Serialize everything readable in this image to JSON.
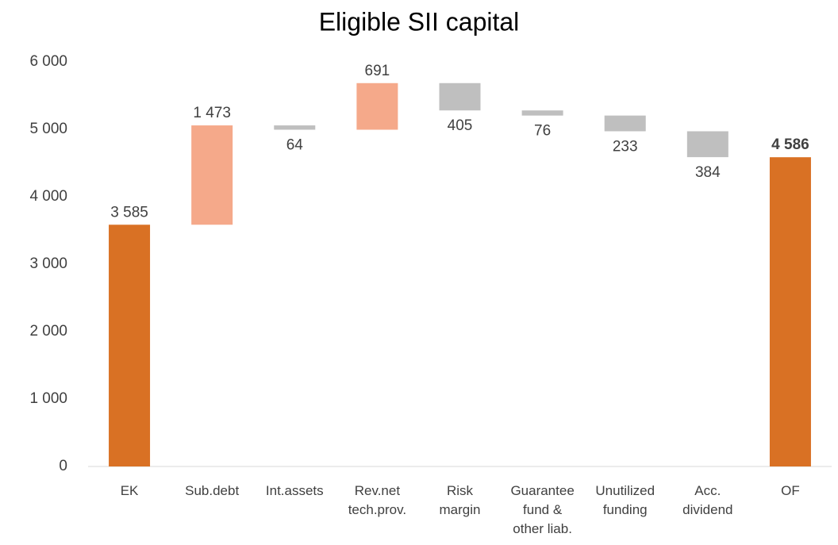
{
  "chart_data": {
    "type": "waterfall",
    "title": "Eligible SII capital",
    "categories": [
      [
        "EK"
      ],
      [
        "Sub.debt"
      ],
      [
        "Int.assets"
      ],
      [
        "Rev.net",
        "tech.prov."
      ],
      [
        "Risk",
        "margin"
      ],
      [
        "Guarantee",
        "fund &",
        "other liab."
      ],
      [
        "Unutilized",
        "funding"
      ],
      [
        "Acc.",
        "dividend"
      ],
      [
        "OF"
      ]
    ],
    "values": [
      3585,
      1473,
      64,
      691,
      405,
      76,
      233,
      384,
      4586
    ],
    "value_labels": [
      "3 585",
      "1 473",
      "64",
      "691",
      "405",
      "76",
      "233",
      "384",
      "4 586"
    ],
    "measures": [
      "total",
      "increase",
      "decrease",
      "increase",
      "decrease",
      "decrease",
      "decrease",
      "decrease",
      "total"
    ],
    "label_bold": [
      false,
      false,
      false,
      false,
      false,
      false,
      false,
      false,
      true
    ],
    "colors": {
      "total": "#d97124",
      "increase": "#f5a98a",
      "decrease": "#bfbfbf"
    },
    "ylim": [
      0,
      6000
    ],
    "yticks": [
      {
        "value": 0,
        "label": "0"
      },
      {
        "value": 1000,
        "label": "1 000"
      },
      {
        "value": 2000,
        "label": "2 000"
      },
      {
        "value": 3000,
        "label": "3 000"
      },
      {
        "value": 4000,
        "label": "4 000"
      },
      {
        "value": 5000,
        "label": "5 000"
      },
      {
        "value": 6000,
        "label": "6 000"
      }
    ],
    "grid": false
  }
}
